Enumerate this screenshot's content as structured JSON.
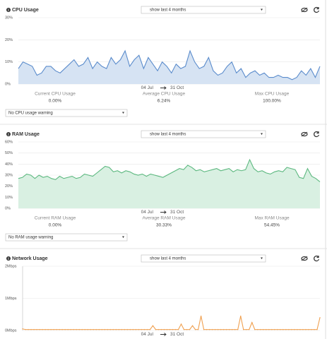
{
  "panels": [
    {
      "title": "CPU Usage",
      "range_select": "show last 4 months",
      "chart": {
        "type": "area",
        "color": "#5b8ccc",
        "fill": "#d6e3f3",
        "ylim": [
          0,
          30
        ],
        "yticks": [
          {
            "value": 0,
            "label": "0%"
          },
          {
            "value": 10,
            "label": "10%"
          },
          {
            "value": 20,
            "label": "20%"
          },
          {
            "value": 30,
            "label": "30%"
          }
        ],
        "values": [
          7,
          10,
          9,
          8,
          4,
          5,
          8,
          8,
          6,
          5,
          7,
          9,
          11,
          8,
          9,
          12,
          7,
          10,
          8,
          7,
          12,
          9,
          11,
          15,
          8,
          11,
          13,
          7,
          12,
          9,
          6,
          10,
          8,
          5,
          9,
          7,
          8,
          15,
          10,
          7,
          8,
          12,
          6,
          4,
          5,
          8,
          10,
          5,
          7,
          3,
          5,
          6,
          4,
          5,
          3,
          3,
          4,
          3,
          3,
          2,
          3,
          6,
          4,
          7,
          3,
          8
        ]
      },
      "date_start": "04 Jul",
      "date_end": "31 Oct",
      "stats": [
        {
          "label": "Current CPU Usage",
          "value": "0.00%"
        },
        {
          "label": "Average CPU Usage",
          "value": "6.24%"
        },
        {
          "label": "Max CPU Usage",
          "value": "100.00%"
        }
      ],
      "warning_select": "No CPU usage warning"
    },
    {
      "title": "RAM Usage",
      "range_select": "show last 4 months",
      "chart": {
        "type": "area",
        "color": "#5cb87f",
        "fill": "#d9f0e2",
        "ylim": [
          0,
          60
        ],
        "yticks": [
          {
            "value": 0,
            "label": "0%"
          },
          {
            "value": 10,
            "label": "10%"
          },
          {
            "value": 20,
            "label": "20%"
          },
          {
            "value": 30,
            "label": "30%"
          },
          {
            "value": 40,
            "label": "40%"
          },
          {
            "value": 50,
            "label": "50%"
          },
          {
            "value": 60,
            "label": "60%"
          }
        ],
        "values": [
          27,
          28,
          31,
          30,
          27,
          30,
          28,
          29,
          27,
          26,
          29,
          27,
          28,
          29,
          27,
          28,
          31,
          30,
          29,
          32,
          35,
          38,
          37,
          33,
          34,
          32,
          34,
          33,
          31,
          30,
          31,
          29,
          31,
          30,
          29,
          28,
          30,
          32,
          34,
          36,
          35,
          39,
          37,
          34,
          35,
          33,
          34,
          35,
          36,
          34,
          35,
          36,
          33,
          35,
          34,
          35,
          44,
          36,
          33,
          34,
          32,
          31,
          33,
          34,
          33,
          37,
          36,
          35,
          28,
          27,
          36,
          29,
          27,
          24
        ]
      },
      "date_start": "04 Jul",
      "date_end": "31 Oct",
      "stats": [
        {
          "label": "Current RAM Usage",
          "value": "0.00%"
        },
        {
          "label": "Average RAM Usage",
          "value": "30.33%"
        },
        {
          "label": "Max RAM Usage",
          "value": "54.45%"
        }
      ],
      "warning_select": "No RAM usage warning"
    },
    {
      "title": "Network Usage",
      "range_select": "show last 4 months",
      "chart": {
        "type": "line",
        "color": "#f0a050",
        "ylim": [
          0,
          2
        ],
        "yticks": [
          {
            "value": 0,
            "label": "0Mbps"
          },
          {
            "value": 1,
            "label": "1Mbps"
          },
          {
            "value": 2,
            "label": "2Mbps"
          }
        ],
        "values": [
          0.05,
          0.03,
          0.03,
          0.03,
          0.03,
          0.03,
          0.03,
          0.03,
          0.03,
          0.03,
          0.03,
          0.03,
          0.03,
          0.03,
          0.03,
          0.03,
          0.03,
          0.03,
          0.03,
          0.03,
          0.03,
          0.03,
          0.03,
          0.03,
          0.03,
          0.03,
          0.03,
          0.03,
          0.03,
          0.03,
          0.03,
          0.03,
          0.03,
          0.03,
          0.03,
          0.03,
          0.03,
          0.03,
          0.03,
          0.03,
          0.03,
          0.03,
          0.03,
          0.03,
          0.03,
          0.03,
          0.15,
          0.03,
          0.03,
          0.03,
          0.03,
          0.03,
          0.03,
          0.03,
          0.03,
          0.03,
          0.2,
          0.03,
          0.03,
          0.03,
          0.15,
          0.03,
          0.03,
          0.45,
          0.03,
          0.03,
          0.03,
          0.03,
          0.03,
          0.03,
          0.03,
          0.03,
          0.03,
          0.03,
          0.03,
          0.03,
          0.03,
          0.45,
          0.03,
          0.03,
          0.03,
          0.25,
          0.03,
          0.03,
          0.03,
          0.03,
          0.03,
          0.03,
          0.03,
          0.03,
          0.03,
          0.03,
          0.03,
          0.03,
          0.03,
          0.03,
          0.03,
          0.03,
          0.03,
          0.03,
          0.03,
          0.03,
          0.03,
          0.03,
          0.03,
          0.4
        ]
      },
      "date_start": "04 Jul",
      "date_end": "31 Oct"
    }
  ]
}
